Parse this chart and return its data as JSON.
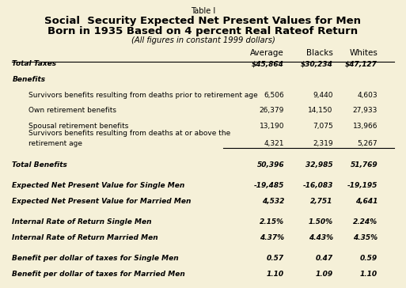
{
  "table_label": "Table I",
  "title_line1": "Social  Security Expected Net Present Values for Men",
  "title_line2": "Born in 1935 Based on 4 percent Real Rate⁠of Return",
  "subtitle": "(All figures in constant 1999 dollars)",
  "col_headers": [
    "",
    "Average",
    "Blacks",
    "Whites"
  ],
  "rows": [
    {
      "label": "Total Taxes",
      "values": [
        "$45,864",
        "$30,234",
        "$47,127"
      ],
      "style": "bold_italic",
      "indent": 0
    },
    {
      "label": "Benefits",
      "values": [
        "",
        "",
        ""
      ],
      "style": "bold_italic",
      "indent": 0
    },
    {
      "label": "Survivors benefits resulting from deaths prior to retirement age",
      "values": [
        "6,506",
        "9,440",
        "4,603"
      ],
      "style": "normal",
      "indent": 1
    },
    {
      "label": "Own retirement benefits",
      "values": [
        "26,379",
        "14,150",
        "27,933"
      ],
      "style": "normal",
      "indent": 1
    },
    {
      "label": "Spousal retirement benefits",
      "values": [
        "13,190",
        "7,075",
        "13,966"
      ],
      "style": "normal",
      "indent": 1
    },
    {
      "label": "Survivors benefits resulting from deaths at or above the\nretirement age",
      "values": [
        "4,321",
        "2,319",
        "5,267"
      ],
      "style": "normal",
      "indent": 1
    },
    {
      "label": "Total Benefits",
      "values": [
        "50,396",
        "32,985",
        "51,769"
      ],
      "style": "bold_italic",
      "indent": 0,
      "top_line": true
    },
    {
      "label": "Expected Net Present Value for Single Men",
      "values": [
        "-19,485",
        "-16,083",
        "-19,195"
      ],
      "style": "bold_italic",
      "indent": 0,
      "spacer_before": true
    },
    {
      "label": "Expected Net Present Value for Married Men",
      "values": [
        "4,532",
        "2,751",
        "4,641"
      ],
      "style": "bold_italic",
      "indent": 0
    },
    {
      "label": "Internal Rate of Return Single Men",
      "values": [
        "2.15%",
        "1.50%",
        "2.24%"
      ],
      "style": "bold_italic",
      "indent": 0,
      "spacer_before": true
    },
    {
      "label": "Internal Rate of Return Married Men",
      "values": [
        "4.37%",
        "4.43%",
        "4.35%"
      ],
      "style": "bold_italic",
      "indent": 0
    },
    {
      "label": "Benefit per dollar of taxes for Single Men",
      "values": [
        "0.57",
        "0.47",
        "0.59"
      ],
      "style": "bold_italic",
      "indent": 0,
      "spacer_before": true
    },
    {
      "label": "Benefit per dollar of taxes for Married Men",
      "values": [
        "1.10",
        "1.09",
        "1.10"
      ],
      "style": "bold_italic",
      "indent": 0
    }
  ],
  "bg_color": "#f5f0d8",
  "text_color": "#000000",
  "line_color": "#000000"
}
